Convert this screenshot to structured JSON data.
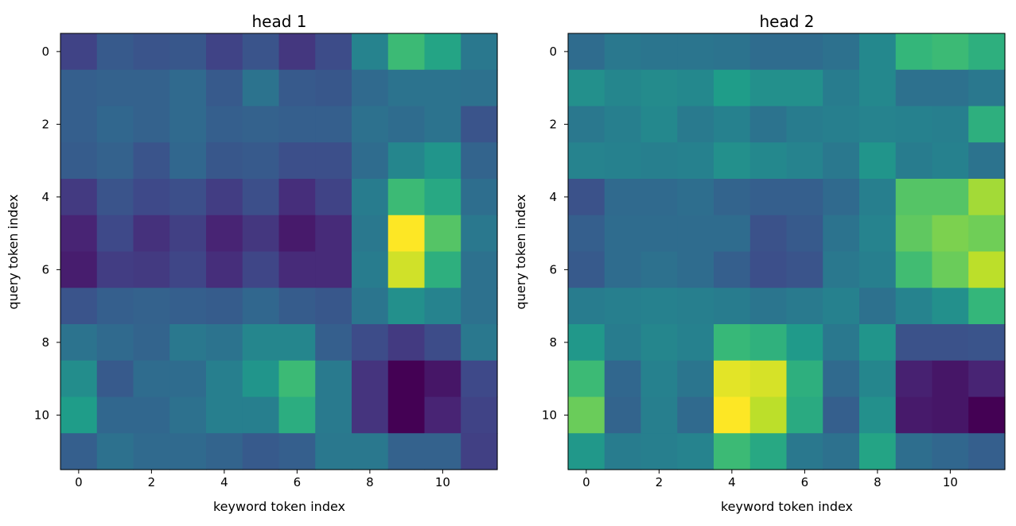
{
  "chart_data": [
    {
      "type": "heatmap",
      "title": "head 1",
      "xlabel": "keyword token index",
      "ylabel": "query token index",
      "colormap": "viridis",
      "xticks": [
        "0",
        "2",
        "4",
        "6",
        "8",
        "10"
      ],
      "yticks": [
        "0",
        "2",
        "4",
        "6",
        "8",
        "10"
      ],
      "values": [
        [
          0.2,
          0.28,
          0.26,
          0.27,
          0.2,
          0.26,
          0.16,
          0.23,
          0.45,
          0.68,
          0.58,
          0.4
        ],
        [
          0.3,
          0.31,
          0.31,
          0.34,
          0.28,
          0.38,
          0.28,
          0.27,
          0.34,
          0.38,
          0.38,
          0.37
        ],
        [
          0.3,
          0.33,
          0.31,
          0.34,
          0.3,
          0.31,
          0.3,
          0.3,
          0.37,
          0.35,
          0.38,
          0.26
        ],
        [
          0.29,
          0.31,
          0.26,
          0.33,
          0.27,
          0.28,
          0.24,
          0.24,
          0.35,
          0.46,
          0.52,
          0.32
        ],
        [
          0.17,
          0.26,
          0.22,
          0.24,
          0.18,
          0.24,
          0.13,
          0.2,
          0.42,
          0.68,
          0.6,
          0.36
        ],
        [
          0.1,
          0.22,
          0.14,
          0.19,
          0.1,
          0.16,
          0.07,
          0.12,
          0.4,
          1.0,
          0.73,
          0.4
        ],
        [
          0.08,
          0.18,
          0.17,
          0.21,
          0.13,
          0.21,
          0.12,
          0.12,
          0.42,
          0.93,
          0.63,
          0.37
        ],
        [
          0.26,
          0.3,
          0.31,
          0.3,
          0.29,
          0.33,
          0.29,
          0.27,
          0.39,
          0.5,
          0.45,
          0.37
        ],
        [
          0.38,
          0.34,
          0.32,
          0.4,
          0.38,
          0.46,
          0.46,
          0.3,
          0.23,
          0.17,
          0.23,
          0.4
        ],
        [
          0.49,
          0.28,
          0.35,
          0.35,
          0.43,
          0.52,
          0.68,
          0.41,
          0.15,
          0.0,
          0.06,
          0.22
        ],
        [
          0.55,
          0.33,
          0.33,
          0.37,
          0.43,
          0.43,
          0.62,
          0.41,
          0.15,
          0.0,
          0.1,
          0.2
        ],
        [
          0.3,
          0.37,
          0.34,
          0.34,
          0.32,
          0.28,
          0.3,
          0.4,
          0.4,
          0.31,
          0.31,
          0.19
        ]
      ]
    },
    {
      "type": "heatmap",
      "title": "head 2",
      "xlabel": "keyword token index",
      "ylabel": "query token index",
      "colormap": "viridis",
      "xticks": [
        "0",
        "2",
        "4",
        "6",
        "8",
        "10"
      ],
      "yticks": [
        "0",
        "2",
        "4",
        "6",
        "8",
        "10"
      ],
      "values": [
        [
          0.35,
          0.4,
          0.39,
          0.39,
          0.38,
          0.35,
          0.35,
          0.37,
          0.47,
          0.66,
          0.68,
          0.63
        ],
        [
          0.5,
          0.46,
          0.48,
          0.47,
          0.55,
          0.5,
          0.5,
          0.42,
          0.47,
          0.37,
          0.37,
          0.4
        ],
        [
          0.4,
          0.43,
          0.47,
          0.41,
          0.44,
          0.38,
          0.42,
          0.43,
          0.45,
          0.44,
          0.43,
          0.63
        ],
        [
          0.45,
          0.44,
          0.43,
          0.44,
          0.5,
          0.47,
          0.45,
          0.4,
          0.52,
          0.42,
          0.44,
          0.38
        ],
        [
          0.25,
          0.34,
          0.34,
          0.36,
          0.32,
          0.3,
          0.3,
          0.34,
          0.43,
          0.73,
          0.73,
          0.86
        ],
        [
          0.3,
          0.35,
          0.35,
          0.35,
          0.35,
          0.25,
          0.28,
          0.38,
          0.45,
          0.75,
          0.8,
          0.78
        ],
        [
          0.28,
          0.35,
          0.37,
          0.35,
          0.3,
          0.24,
          0.26,
          0.4,
          0.43,
          0.69,
          0.77,
          0.9
        ],
        [
          0.42,
          0.43,
          0.44,
          0.43,
          0.42,
          0.39,
          0.41,
          0.44,
          0.37,
          0.45,
          0.5,
          0.66
        ],
        [
          0.53,
          0.42,
          0.46,
          0.44,
          0.67,
          0.64,
          0.54,
          0.4,
          0.52,
          0.25,
          0.25,
          0.26
        ],
        [
          0.68,
          0.33,
          0.44,
          0.39,
          0.96,
          0.94,
          0.63,
          0.34,
          0.46,
          0.09,
          0.06,
          0.1
        ],
        [
          0.77,
          0.32,
          0.43,
          0.34,
          1.0,
          0.9,
          0.61,
          0.3,
          0.5,
          0.07,
          0.06,
          0.0
        ],
        [
          0.53,
          0.42,
          0.43,
          0.45,
          0.68,
          0.6,
          0.4,
          0.37,
          0.58,
          0.36,
          0.33,
          0.3
        ]
      ]
    }
  ]
}
